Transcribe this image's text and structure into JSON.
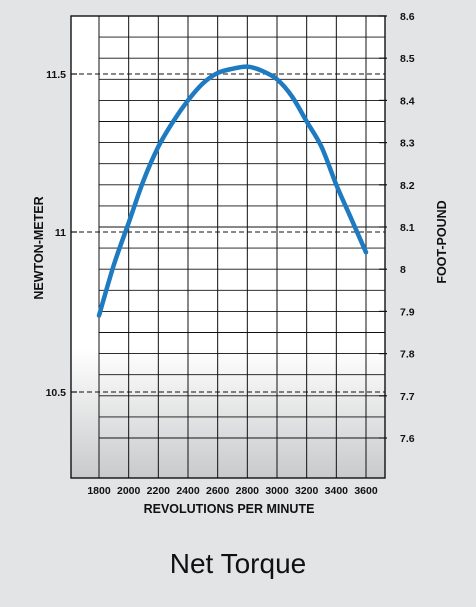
{
  "caption": "Net Torque",
  "chart_data": {
    "type": "line",
    "title": "Net Torque",
    "xlabel": "REVOLUTIONS PER MINUTE",
    "ylabel_left": "NEWTON-METER",
    "ylabel_right": "FOOT-POUND",
    "x_ticks": [
      1800,
      2000,
      2200,
      2400,
      2600,
      2800,
      3000,
      3200,
      3400,
      3600
    ],
    "y_left_ticks": [
      {
        "value": 10.5,
        "label": "10.5"
      },
      {
        "value": 11,
        "label": "11"
      },
      {
        "value": 11.5,
        "label": "11.5"
      }
    ],
    "y_right_ticks": [
      {
        "value": 7.6,
        "label": "7.6"
      },
      {
        "value": 7.7,
        "label": "7.7"
      },
      {
        "value": 7.8,
        "label": "7.8"
      },
      {
        "value": 7.9,
        "label": "7.9"
      },
      {
        "value": 8.0,
        "label": "8"
      },
      {
        "value": 8.1,
        "label": "8.1"
      },
      {
        "value": 8.2,
        "label": "8.2"
      },
      {
        "value": 8.3,
        "label": "8.3"
      },
      {
        "value": 8.4,
        "label": "8.4"
      },
      {
        "value": 8.5,
        "label": "8.5"
      },
      {
        "value": 8.6,
        "label": "8.6"
      }
    ],
    "xlim": [
      1800,
      3600
    ],
    "y_right_lim": [
      7.5,
      8.6
    ],
    "grid": true,
    "series": [
      {
        "color": "#1f7bc1",
        "unit": "foot-pound",
        "x": [
          1800,
          1900,
          2000,
          2100,
          2200,
          2300,
          2400,
          2500,
          2600,
          2700,
          2800,
          2900,
          3000,
          3100,
          3200,
          3300,
          3400,
          3500,
          3600
        ],
        "y": [
          7.89,
          8.01,
          8.11,
          8.21,
          8.29,
          8.35,
          8.4,
          8.44,
          8.465,
          8.475,
          8.48,
          8.47,
          8.45,
          8.41,
          8.35,
          8.29,
          8.2,
          8.12,
          8.04
        ]
      }
    ]
  }
}
